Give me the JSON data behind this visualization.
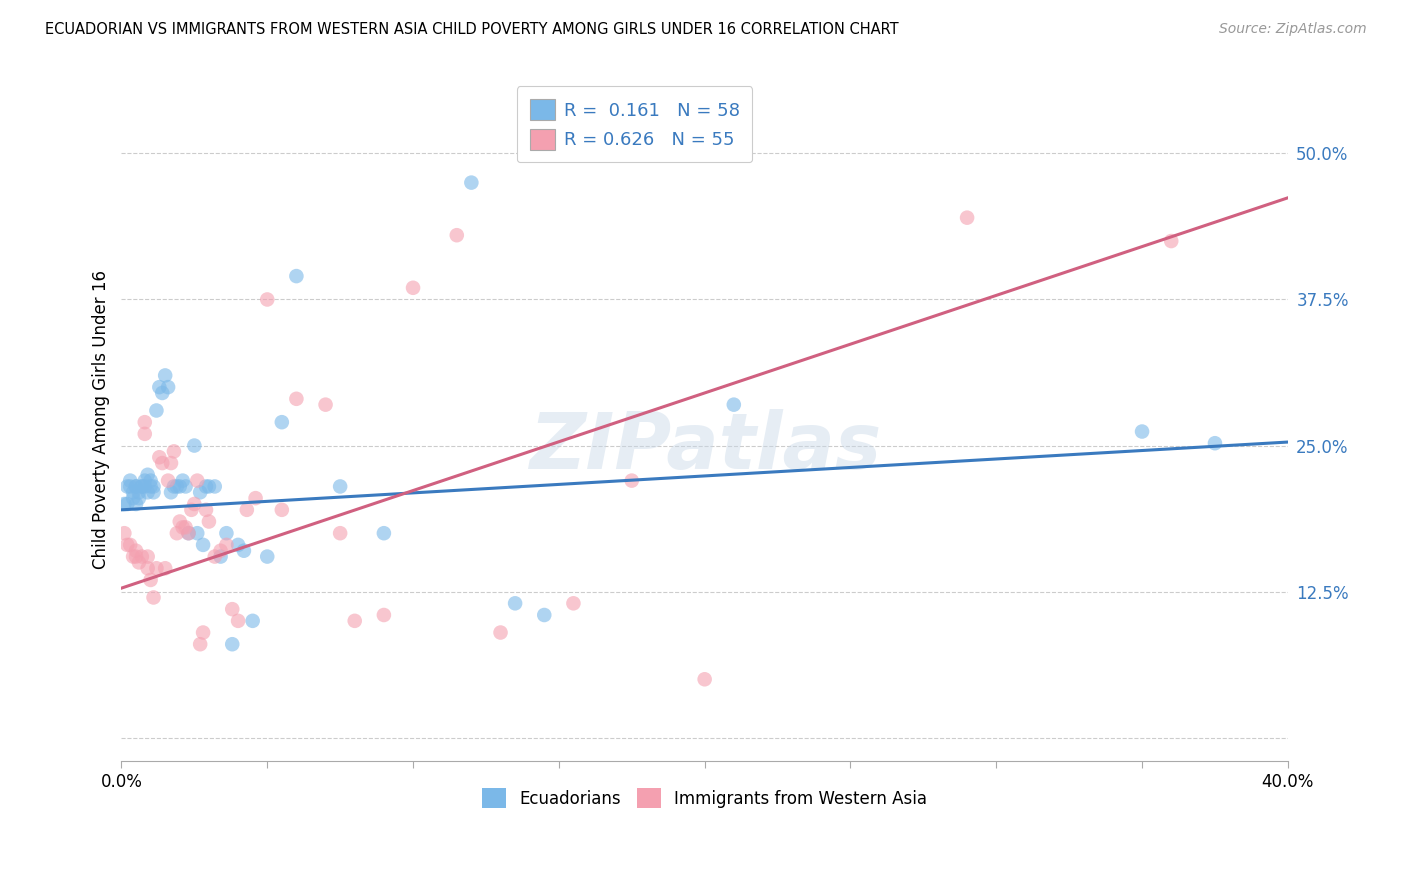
{
  "title": "ECUADORIAN VS IMMIGRANTS FROM WESTERN ASIA CHILD POVERTY AMONG GIRLS UNDER 16 CORRELATION CHART",
  "source": "Source: ZipAtlas.com",
  "ylabel": "Child Poverty Among Girls Under 16",
  "xlim": [
    0.0,
    0.4
  ],
  "ylim": [
    -0.02,
    0.565
  ],
  "yticks": [
    0.0,
    0.125,
    0.25,
    0.375,
    0.5
  ],
  "ytick_labels": [
    "",
    "12.5%",
    "25.0%",
    "37.5%",
    "50.0%"
  ],
  "xticks": [
    0.0,
    0.05,
    0.1,
    0.15,
    0.2,
    0.25,
    0.3,
    0.35,
    0.4
  ],
  "xtick_labels": [
    "0.0%",
    "",
    "",
    "",
    "",
    "",
    "",
    "",
    "40.0%"
  ],
  "blue_R": 0.161,
  "blue_N": 58,
  "pink_R": 0.626,
  "pink_N": 55,
  "blue_color": "#7bb8e8",
  "pink_color": "#f4a0b0",
  "blue_line_color": "#3a7abf",
  "pink_line_color": "#d06080",
  "label_color": "#3a7abf",
  "background_color": "#ffffff",
  "grid_color": "#cccccc",
  "watermark": "ZIPatlas",
  "blue_line_x0": 0.0,
  "blue_line_y0": 0.195,
  "blue_line_x1": 0.4,
  "blue_line_y1": 0.253,
  "pink_line_x0": 0.0,
  "pink_line_y0": 0.128,
  "pink_line_x1": 0.4,
  "pink_line_y1": 0.462,
  "blue_scatter_x": [
    0.001,
    0.002,
    0.002,
    0.003,
    0.003,
    0.004,
    0.004,
    0.005,
    0.005,
    0.005,
    0.006,
    0.006,
    0.007,
    0.007,
    0.008,
    0.008,
    0.009,
    0.009,
    0.01,
    0.01,
    0.011,
    0.011,
    0.012,
    0.013,
    0.014,
    0.015,
    0.016,
    0.017,
    0.018,
    0.019,
    0.02,
    0.021,
    0.022,
    0.023,
    0.025,
    0.026,
    0.027,
    0.028,
    0.029,
    0.03,
    0.032,
    0.034,
    0.036,
    0.038,
    0.04,
    0.042,
    0.045,
    0.05,
    0.055,
    0.06,
    0.075,
    0.09,
    0.12,
    0.135,
    0.145,
    0.21,
    0.35,
    0.375
  ],
  "blue_scatter_y": [
    0.2,
    0.215,
    0.2,
    0.22,
    0.215,
    0.21,
    0.205,
    0.215,
    0.215,
    0.2,
    0.21,
    0.205,
    0.215,
    0.215,
    0.22,
    0.215,
    0.225,
    0.21,
    0.215,
    0.22,
    0.21,
    0.215,
    0.28,
    0.3,
    0.295,
    0.31,
    0.3,
    0.21,
    0.215,
    0.215,
    0.215,
    0.22,
    0.215,
    0.175,
    0.25,
    0.175,
    0.21,
    0.165,
    0.215,
    0.215,
    0.215,
    0.155,
    0.175,
    0.08,
    0.165,
    0.16,
    0.1,
    0.155,
    0.27,
    0.395,
    0.215,
    0.175,
    0.475,
    0.115,
    0.105,
    0.285,
    0.262,
    0.252
  ],
  "pink_scatter_x": [
    0.001,
    0.002,
    0.003,
    0.004,
    0.005,
    0.005,
    0.006,
    0.007,
    0.008,
    0.008,
    0.009,
    0.009,
    0.01,
    0.011,
    0.012,
    0.013,
    0.014,
    0.015,
    0.016,
    0.017,
    0.018,
    0.019,
    0.02,
    0.021,
    0.022,
    0.023,
    0.024,
    0.025,
    0.026,
    0.027,
    0.028,
    0.029,
    0.03,
    0.032,
    0.034,
    0.036,
    0.038,
    0.04,
    0.043,
    0.046,
    0.05,
    0.055,
    0.06,
    0.07,
    0.075,
    0.08,
    0.09,
    0.1,
    0.115,
    0.13,
    0.155,
    0.175,
    0.2,
    0.29,
    0.36
  ],
  "pink_scatter_y": [
    0.175,
    0.165,
    0.165,
    0.155,
    0.16,
    0.155,
    0.15,
    0.155,
    0.26,
    0.27,
    0.155,
    0.145,
    0.135,
    0.12,
    0.145,
    0.24,
    0.235,
    0.145,
    0.22,
    0.235,
    0.245,
    0.175,
    0.185,
    0.18,
    0.18,
    0.175,
    0.195,
    0.2,
    0.22,
    0.08,
    0.09,
    0.195,
    0.185,
    0.155,
    0.16,
    0.165,
    0.11,
    0.1,
    0.195,
    0.205,
    0.375,
    0.195,
    0.29,
    0.285,
    0.175,
    0.1,
    0.105,
    0.385,
    0.43,
    0.09,
    0.115,
    0.22,
    0.05,
    0.445,
    0.425
  ]
}
